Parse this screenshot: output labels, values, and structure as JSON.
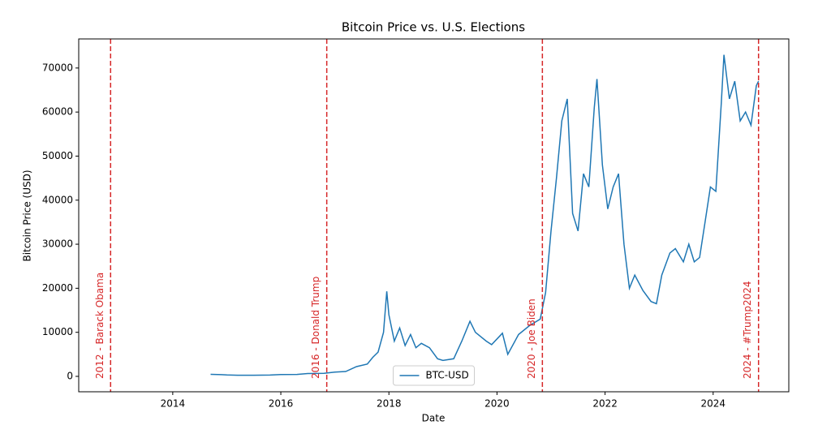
{
  "chart_data": {
    "type": "line",
    "title": "Bitcoin Price vs. U.S. Elections",
    "x_label": "Date",
    "y_label": "Bitcoin Price (USD)",
    "xlim": [
      2012.26,
      2025.4
    ],
    "xticks": [
      2014,
      2016,
      2018,
      2020,
      2022,
      2024
    ],
    "ylim": [
      -3500,
      76600
    ],
    "yticks": [
      0,
      10000,
      20000,
      30000,
      40000,
      50000,
      60000,
      70000
    ],
    "legend": "lower center",
    "series": [
      {
        "name": "BTC-USD",
        "color": "#1f77b4",
        "x": [
          2014.7,
          2014.9,
          2015.0,
          2015.2,
          2015.5,
          2015.8,
          2016.0,
          2016.3,
          2016.5,
          2016.8,
          2017.0,
          2017.2,
          2017.4,
          2017.6,
          2017.7,
          2017.8,
          2017.9,
          2017.96,
          2018.0,
          2018.1,
          2018.2,
          2018.3,
          2018.4,
          2018.5,
          2018.6,
          2018.75,
          2018.9,
          2019.0,
          2019.2,
          2019.35,
          2019.5,
          2019.6,
          2019.8,
          2019.9,
          2020.1,
          2020.2,
          2020.4,
          2020.6,
          2020.8,
          2020.9,
          2021.0,
          2021.1,
          2021.2,
          2021.3,
          2021.4,
          2021.5,
          2021.6,
          2021.7,
          2021.8,
          2021.85,
          2021.95,
          2022.05,
          2022.15,
          2022.25,
          2022.35,
          2022.45,
          2022.55,
          2022.7,
          2022.85,
          2022.95,
          2023.05,
          2023.2,
          2023.3,
          2023.45,
          2023.55,
          2023.65,
          2023.75,
          2023.85,
          2023.95,
          2024.05,
          2024.15,
          2024.2,
          2024.3,
          2024.4,
          2024.5,
          2024.6,
          2024.7,
          2024.8,
          2024.84
        ],
        "values": [
          460,
          380,
          320,
          250,
          260,
          300,
          430,
          440,
          650,
          700,
          960,
          1100,
          2200,
          2800,
          4300,
          5500,
          10000,
          19300,
          14000,
          8000,
          11000,
          7000,
          9500,
          6500,
          7500,
          6500,
          4000,
          3600,
          4000,
          8000,
          12500,
          10000,
          8000,
          7200,
          9800,
          5000,
          9500,
          11500,
          13000,
          19000,
          33000,
          45000,
          58000,
          63000,
          37000,
          33000,
          46000,
          43000,
          61000,
          67500,
          48000,
          38000,
          43000,
          46000,
          30000,
          20000,
          23000,
          19500,
          17000,
          16500,
          23000,
          28000,
          29000,
          26000,
          30000,
          26000,
          27000,
          35000,
          43000,
          42000,
          62000,
          73000,
          63000,
          67000,
          58000,
          60000,
          57000,
          66000,
          67000
        ]
      }
    ],
    "annotations": [
      {
        "x": 2012.85,
        "label": "2012 - Barack Obama",
        "color": "#d62728"
      },
      {
        "x": 2016.85,
        "label": "2016 - Donald Trump",
        "color": "#d62728"
      },
      {
        "x": 2020.84,
        "label": "2020 - Joe Biden",
        "color": "#d62728"
      },
      {
        "x": 2024.84,
        "label": "2024 - #Trump2024",
        "color": "#d62728"
      }
    ]
  }
}
